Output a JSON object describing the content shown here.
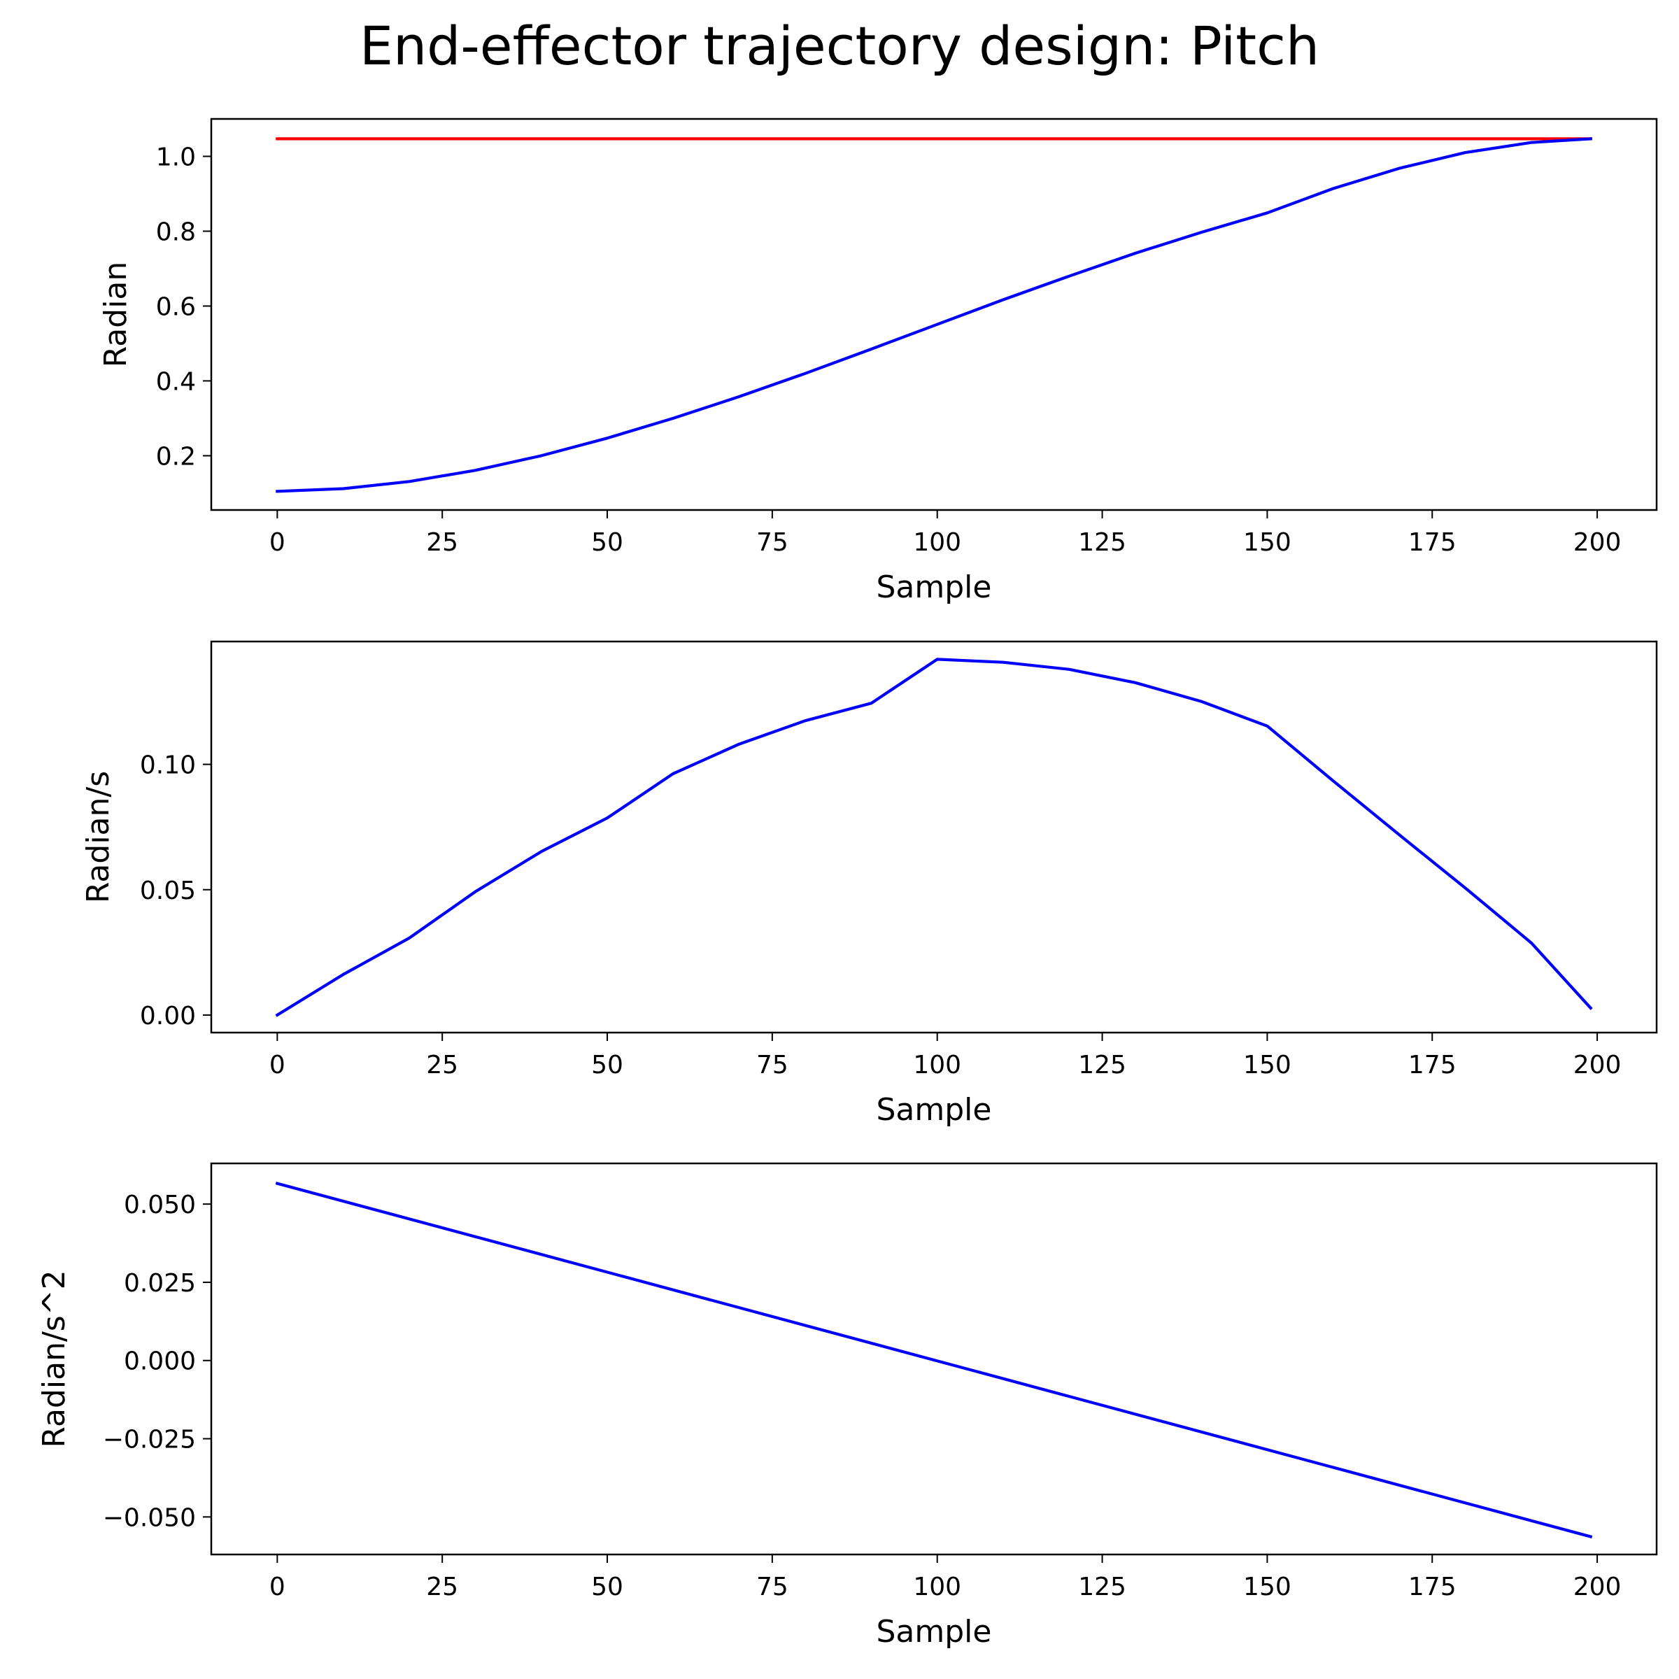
{
  "figure": {
    "title": "End-effector trajectory design: Pitch"
  },
  "chart_data": [
    {
      "type": "line",
      "xlabel": "Sample",
      "ylabel": "Radian",
      "xlim": [
        -10,
        209
      ],
      "ylim": [
        0.055,
        1.1
      ],
      "xticks": [
        0,
        25,
        50,
        75,
        100,
        125,
        150,
        175,
        200
      ],
      "xtick_labels": [
        "0",
        "25",
        "50",
        "75",
        "100",
        "125",
        "150",
        "175",
        "200"
      ],
      "yticks": [
        0.2,
        0.4,
        0.6,
        0.8,
        1.0
      ],
      "ytick_labels": [
        "0.2",
        "0.4",
        "0.6",
        "0.8",
        "1.0"
      ],
      "grid": false,
      "series": [
        {
          "color": "#ff0000",
          "x": [
            0,
            199
          ],
          "y": [
            1.047,
            1.047
          ]
        },
        {
          "color": "#0000ff",
          "x": [
            0,
            10,
            20,
            30,
            40,
            50,
            60,
            70,
            80,
            90,
            100,
            110,
            120,
            130,
            140,
            150,
            160,
            170,
            180,
            190,
            199
          ],
          "y": [
            0.105,
            0.112,
            0.131,
            0.161,
            0.2,
            0.247,
            0.3,
            0.358,
            0.42,
            0.485,
            0.551,
            0.617,
            0.68,
            0.741,
            0.797,
            0.849,
            0.914,
            0.968,
            1.01,
            1.037,
            1.047
          ]
        }
      ]
    },
    {
      "type": "line",
      "xlabel": "Sample",
      "ylabel": "Radian/s",
      "xlim": [
        -10,
        209
      ],
      "ylim": [
        -0.007,
        0.149
      ],
      "xticks": [
        0,
        25,
        50,
        75,
        100,
        125,
        150,
        175,
        200
      ],
      "xtick_labels": [
        "0",
        "25",
        "50",
        "75",
        "100",
        "125",
        "150",
        "175",
        "200"
      ],
      "yticks": [
        0.0,
        0.05,
        0.1
      ],
      "ytick_labels": [
        "0.00",
        "0.05",
        "0.10"
      ],
      "grid": false,
      "series": [
        {
          "color": "#0000ff",
          "x": [
            0,
            10,
            20,
            30,
            40,
            50,
            60,
            70,
            80,
            90,
            100,
            110,
            120,
            130,
            140,
            150,
            160,
            170,
            180,
            190,
            199
          ],
          "y": [
            0.0,
            0.0162,
            0.0307,
            0.0492,
            0.0652,
            0.0786,
            0.0963,
            0.1081,
            0.1174,
            0.1244,
            0.1419,
            0.1407,
            0.1379,
            0.1326,
            0.1251,
            0.1153,
            0.0934,
            0.0719,
            0.0507,
            0.0288,
            0.0028
          ]
        }
      ]
    },
    {
      "type": "line",
      "xlabel": "Sample",
      "ylabel": "Radian/s^2",
      "xlim": [
        -10,
        209
      ],
      "ylim": [
        -0.062,
        0.063
      ],
      "xticks": [
        0,
        25,
        50,
        75,
        100,
        125,
        150,
        175,
        200
      ],
      "xtick_labels": [
        "0",
        "25",
        "50",
        "75",
        "100",
        "125",
        "150",
        "175",
        "200"
      ],
      "yticks": [
        -0.05,
        -0.025,
        0.0,
        0.025,
        0.05
      ],
      "ytick_labels": [
        "−0.050",
        "−0.025",
        "0.000",
        "0.025",
        "0.050"
      ],
      "grid": false,
      "series": [
        {
          "color": "#0000ff",
          "x": [
            0,
            199
          ],
          "y": [
            0.0566,
            -0.0563
          ]
        }
      ]
    }
  ]
}
